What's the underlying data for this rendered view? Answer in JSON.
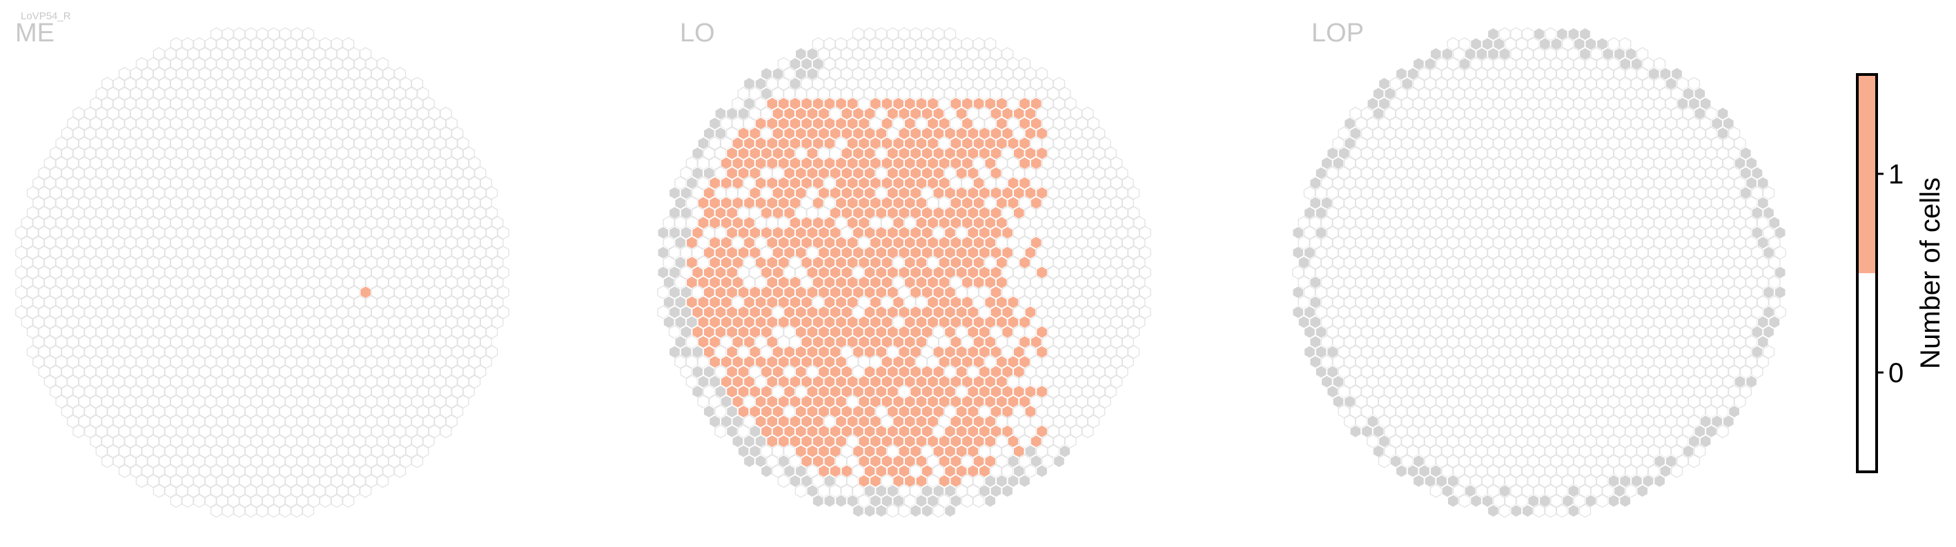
{
  "figure_label": "LoVP54_R",
  "colors": {
    "background": "#ffffff",
    "value_1": "#f8ad8f",
    "value_0": "#ffffff",
    "outside": "#d3d3d3",
    "hex_stroke": "#e3e3e3",
    "panel_label": "#c8c8c8"
  },
  "chart_data": [
    {
      "type": "heatmap",
      "subtype": "hexagonal-column-map",
      "panel": "ME",
      "title": "ME",
      "description_values": "one orange column; all others 0",
      "highlighted_columns": [
        [
          9,
          2
        ]
      ],
      "outside_columns": []
    },
    {
      "type": "heatmap",
      "subtype": "hexagonal-column-map",
      "panel": "LO",
      "title": "LO",
      "highlighted_fraction": 0.62,
      "highlighted_region": "left and central part of the map, excluding the right rim",
      "outside_columns_region": "scattered grey columns along the left rim and the bottom edge"
    },
    {
      "type": "heatmap",
      "subtype": "hexagonal-column-map",
      "panel": "LOP",
      "title": "LOP",
      "highlighted_fraction": 0,
      "outside_columns_region": "grey columns along the outer rim"
    }
  ],
  "colorbar": {
    "label": "Number of cells",
    "ticks": [
      "1",
      "0"
    ],
    "range": [
      -0.5,
      1.5
    ],
    "segments": [
      {
        "from": 0.5,
        "to": 1.5,
        "color": "#f8ad8f"
      },
      {
        "from": -0.5,
        "to": 0.5,
        "color": "#ffffff"
      }
    ]
  }
}
